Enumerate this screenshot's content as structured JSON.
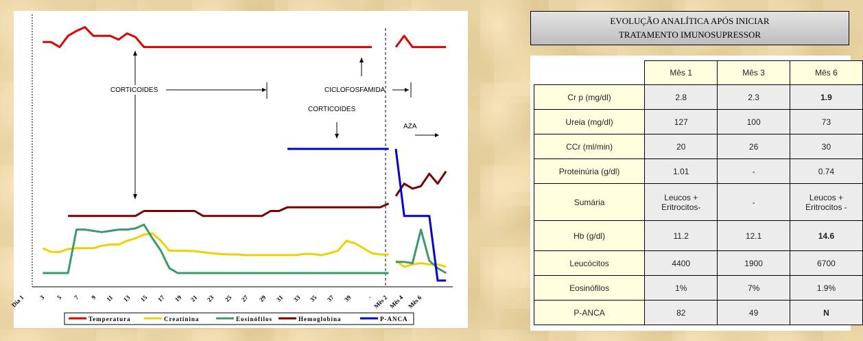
{
  "chart_data": {
    "type": "line",
    "x_ticks": [
      "Dia 1",
      "3",
      "5",
      "7",
      "9",
      "11",
      "13",
      "15",
      "17",
      "19",
      "21",
      "23",
      "25",
      "27",
      "29",
      "31",
      "33",
      "35",
      "37",
      "39",
      "-",
      "Mês 2",
      "Mês 4",
      "Mês 6"
    ],
    "series": [
      {
        "name": "Temperatura",
        "color": "#e00000",
        "phase1": [
          [
            1,
            0.93
          ],
          [
            2,
            0.93
          ],
          [
            3,
            0.91
          ],
          [
            4,
            0.955
          ],
          [
            5,
            0.975
          ],
          [
            6,
            0.99
          ],
          [
            7,
            0.955
          ],
          [
            8,
            0.955
          ],
          [
            9,
            0.955
          ],
          [
            10,
            0.94
          ],
          [
            11,
            0.965
          ],
          [
            12,
            0.95
          ],
          [
            13,
            0.91
          ],
          [
            14,
            0.91
          ],
          [
            15,
            0.91
          ],
          [
            16,
            0.91
          ],
          [
            17,
            0.91
          ],
          [
            18,
            0.91
          ],
          [
            19,
            0.91
          ],
          [
            20,
            0.91
          ],
          [
            21,
            0.91
          ],
          [
            22,
            0.91
          ],
          [
            23,
            0.91
          ],
          [
            24,
            0.91
          ],
          [
            25,
            0.91
          ],
          [
            26,
            0.91
          ],
          [
            27,
            0.91
          ],
          [
            28,
            0.91
          ],
          [
            29,
            0.91
          ],
          [
            30,
            0.91
          ],
          [
            31,
            0.91
          ],
          [
            32,
            0.91
          ],
          [
            33,
            0.91
          ],
          [
            34,
            0.91
          ],
          [
            35,
            0.91
          ],
          [
            36,
            0.91
          ],
          [
            37,
            0.91
          ],
          [
            38,
            0.91
          ],
          [
            39,
            0.91
          ],
          [
            40,
            0.91
          ]
        ],
        "phase2": [
          [
            0,
            0.91
          ],
          [
            1,
            0.955
          ],
          [
            2,
            0.91
          ],
          [
            3,
            0.91
          ],
          [
            4,
            0.91
          ],
          [
            5,
            0.91
          ],
          [
            6,
            0.91
          ]
        ]
      },
      {
        "name": "Creatinina",
        "color": "#f2d000",
        "phase1": [
          [
            1,
            0.1
          ],
          [
            2,
            0.085
          ],
          [
            3,
            0.085
          ],
          [
            4,
            0.097
          ],
          [
            5,
            0.1
          ],
          [
            6,
            0.1
          ],
          [
            7,
            0.1
          ],
          [
            8,
            0.11
          ],
          [
            9,
            0.115
          ],
          [
            10,
            0.115
          ],
          [
            11,
            0.13
          ],
          [
            12,
            0.14
          ],
          [
            13,
            0.155
          ],
          [
            14,
            0.16
          ],
          [
            15,
            0.13
          ],
          [
            16,
            0.09
          ],
          [
            17,
            0.09
          ],
          [
            18,
            0.09
          ],
          [
            19,
            0.088
          ],
          [
            20,
            0.084
          ],
          [
            21,
            0.08
          ],
          [
            22,
            0.077
          ],
          [
            23,
            0.075
          ],
          [
            24,
            0.075
          ],
          [
            25,
            0.072
          ],
          [
            26,
            0.072
          ],
          [
            27,
            0.072
          ],
          [
            28,
            0.072
          ],
          [
            29,
            0.072
          ],
          [
            30,
            0.072
          ],
          [
            31,
            0.072
          ],
          [
            32,
            0.077
          ],
          [
            33,
            0.077
          ],
          [
            34,
            0.072
          ],
          [
            35,
            0.08
          ],
          [
            36,
            0.09
          ],
          [
            37,
            0.13
          ],
          [
            38,
            0.12
          ],
          [
            39,
            0.1
          ],
          [
            40,
            0.08
          ],
          [
            41,
            0.075
          ],
          [
            42,
            0.075
          ]
        ],
        "phase2": [
          [
            0,
            0.05
          ],
          [
            1,
            0.025
          ],
          [
            2,
            0.035
          ],
          [
            3,
            0.04
          ],
          [
            4,
            0.035
          ],
          [
            5,
            0.035
          ],
          [
            6,
            0.025
          ]
        ]
      },
      {
        "name": "Eosinófilos",
        "color": "#3a9a6a",
        "phase1": [
          [
            1,
            0
          ],
          [
            2,
            0
          ],
          [
            3,
            0
          ],
          [
            4,
            0
          ],
          [
            5,
            0.175
          ],
          [
            6,
            0.175
          ],
          [
            7,
            0.17
          ],
          [
            8,
            0.165
          ],
          [
            9,
            0.17
          ],
          [
            10,
            0.175
          ],
          [
            11,
            0.175
          ],
          [
            12,
            0.18
          ],
          [
            13,
            0.195
          ],
          [
            14,
            0.14
          ],
          [
            15,
            0.09
          ],
          [
            16,
            0.02
          ],
          [
            17,
            0
          ],
          [
            18,
            0
          ],
          [
            19,
            0
          ],
          [
            20,
            0
          ],
          [
            21,
            0
          ],
          [
            22,
            0
          ],
          [
            23,
            0
          ],
          [
            24,
            0
          ],
          [
            25,
            0
          ],
          [
            26,
            0
          ],
          [
            27,
            0
          ],
          [
            28,
            0
          ],
          [
            29,
            0
          ],
          [
            30,
            0
          ],
          [
            31,
            0
          ],
          [
            32,
            0
          ],
          [
            33,
            0
          ],
          [
            34,
            0
          ],
          [
            35,
            0
          ],
          [
            36,
            0
          ],
          [
            37,
            0
          ],
          [
            38,
            0
          ],
          [
            39,
            0
          ],
          [
            40,
            0
          ],
          [
            41,
            0
          ],
          [
            42,
            0
          ]
        ],
        "phase2": [
          [
            0,
            0.045
          ],
          [
            1,
            0.045
          ],
          [
            2,
            0.04
          ],
          [
            3,
            0.175
          ],
          [
            4,
            0.05
          ],
          [
            5,
            0.02
          ],
          [
            6,
            0
          ]
        ]
      },
      {
        "name": "Hemoglobina",
        "color": "#7a0000",
        "phase1": [
          [
            4,
            0.23
          ],
          [
            5,
            0.23
          ],
          [
            6,
            0.23
          ],
          [
            7,
            0.23
          ],
          [
            8,
            0.23
          ],
          [
            9,
            0.23
          ],
          [
            10,
            0.23
          ],
          [
            11,
            0.23
          ],
          [
            12,
            0.23
          ],
          [
            13,
            0.25
          ],
          [
            14,
            0.25
          ],
          [
            15,
            0.25
          ],
          [
            16,
            0.25
          ],
          [
            17,
            0.25
          ],
          [
            18,
            0.25
          ],
          [
            19,
            0.25
          ],
          [
            20,
            0.23
          ],
          [
            21,
            0.23
          ],
          [
            22,
            0.23
          ],
          [
            23,
            0.23
          ],
          [
            24,
            0.23
          ],
          [
            25,
            0.23
          ],
          [
            26,
            0.23
          ],
          [
            27,
            0.23
          ],
          [
            28,
            0.25
          ],
          [
            29,
            0.25
          ],
          [
            30,
            0.265
          ],
          [
            31,
            0.265
          ],
          [
            32,
            0.265
          ],
          [
            33,
            0.265
          ],
          [
            34,
            0.265
          ],
          [
            35,
            0.265
          ],
          [
            36,
            0.265
          ],
          [
            37,
            0.265
          ],
          [
            38,
            0.265
          ],
          [
            39,
            0.265
          ],
          [
            40,
            0.265
          ],
          [
            41,
            0.265
          ],
          [
            42,
            0.28
          ]
        ],
        "phase2": [
          [
            0,
            0.31
          ],
          [
            1,
            0.36
          ],
          [
            2,
            0.34
          ],
          [
            3,
            0.35
          ],
          [
            4,
            0.4
          ],
          [
            5,
            0.36
          ],
          [
            6,
            0.41
          ]
        ]
      },
      {
        "name": "P-ANCA",
        "color": "#0000cc",
        "phase1": [
          [
            30,
            0.5
          ],
          [
            31,
            0.5
          ],
          [
            32,
            0.5
          ],
          [
            33,
            0.5
          ],
          [
            34,
            0.5
          ],
          [
            35,
            0.5
          ],
          [
            36,
            0.5
          ],
          [
            37,
            0.5
          ],
          [
            38,
            0.5
          ],
          [
            39,
            0.5
          ],
          [
            40,
            0.5
          ],
          [
            41,
            0.5
          ],
          [
            42,
            0.5
          ]
        ],
        "phase2": [
          [
            0,
            0.5
          ],
          [
            1,
            0.23
          ],
          [
            2,
            0.23
          ],
          [
            3,
            0.23
          ],
          [
            4,
            0.23
          ],
          [
            5,
            -0.03
          ],
          [
            6,
            -0.03
          ]
        ]
      }
    ],
    "annotations": {
      "corticoides_1": "CORTICOIDES",
      "corticoides_2": "CORTICOIDES",
      "ciclofosfamida": "CICLOFOSFAMIDA",
      "aza": "AZA"
    }
  },
  "table": {
    "title_line1": "EVOLUÇÃO ANALÍTICA APÓS INICIAR",
    "title_line2": "TRATAMENTO IMUNOSUPRESSOR",
    "columns": [
      "Mês 1",
      "Mês 3",
      "Mês 6"
    ],
    "rows": [
      {
        "label": "Cr p (mg/dl)",
        "values": [
          "2.8",
          "2.3",
          "1.9"
        ],
        "bold": [
          false,
          false,
          true
        ]
      },
      {
        "label": "Ureia (mg/dl)",
        "values": [
          "127",
          "100",
          "73"
        ],
        "bold": [
          false,
          false,
          false
        ]
      },
      {
        "label": "CCr (ml/min)",
        "values": [
          "20",
          "26",
          "30"
        ],
        "bold": [
          false,
          false,
          false
        ]
      },
      {
        "label": "Proteinúria (g/dl)",
        "values": [
          "1.01",
          "-",
          "0.74"
        ],
        "bold": [
          false,
          false,
          false
        ]
      },
      {
        "label": "Sumária",
        "values": [
          "Leucos + Eritrocitos-",
          "-",
          "Leucos + Eritrocitos -"
        ],
        "bold": [
          false,
          false,
          false
        ]
      },
      {
        "label": "Hb (g/dl)",
        "values": [
          "11.2",
          "12.1",
          "14.6"
        ],
        "bold": [
          false,
          false,
          true
        ]
      },
      {
        "label": "Leucócitos",
        "values": [
          "4400",
          "1900",
          "6700"
        ],
        "bold": [
          false,
          false,
          false
        ]
      },
      {
        "label": "Eosinófilos",
        "values": [
          "1%",
          "7%",
          "1.9%"
        ],
        "bold": [
          false,
          false,
          false
        ]
      },
      {
        "label": "P-ANCA",
        "values": [
          "82",
          "49",
          "N"
        ],
        "bold": [
          false,
          false,
          true
        ]
      }
    ]
  }
}
